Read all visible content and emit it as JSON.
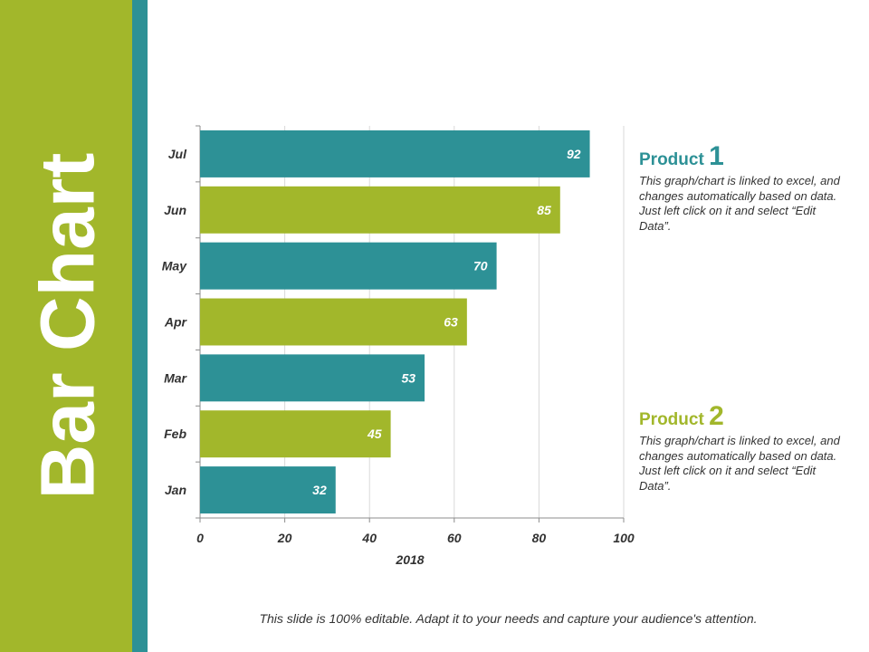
{
  "slide": {
    "title": "Bar Chart",
    "footer": "This slide is 100% editable. Adapt it to your needs and capture your audience's attention."
  },
  "colors": {
    "green": "#a2b72b",
    "teal": "#2d9196",
    "text": "#333333"
  },
  "legend": [
    {
      "label": "Product",
      "number": "1",
      "color": "#2d9196",
      "description": "This graph/chart is linked to excel, and changes automatically based on data. Just left click on it and select “Edit Data”."
    },
    {
      "label": "Product",
      "number": "2",
      "color": "#a2b72b",
      "description": "This graph/chart is linked to excel, and changes automatically based on data. Just left click on it and select “Edit Data”."
    }
  ],
  "chart_data": {
    "type": "bar",
    "orientation": "horizontal",
    "categories": [
      "Jan",
      "Feb",
      "Mar",
      "Apr",
      "May",
      "Jun",
      "Jul"
    ],
    "values": [
      32,
      45,
      53,
      63,
      70,
      85,
      92
    ],
    "bar_colors": [
      "#2d9196",
      "#a2b72b",
      "#2d9196",
      "#a2b72b",
      "#2d9196",
      "#a2b72b",
      "#2d9196"
    ],
    "data_labels": true,
    "xlabel": "2018",
    "ylabel": "",
    "xlim": [
      0,
      100
    ],
    "xticks": [
      0,
      20,
      40,
      60,
      80,
      100
    ],
    "grid": true
  }
}
